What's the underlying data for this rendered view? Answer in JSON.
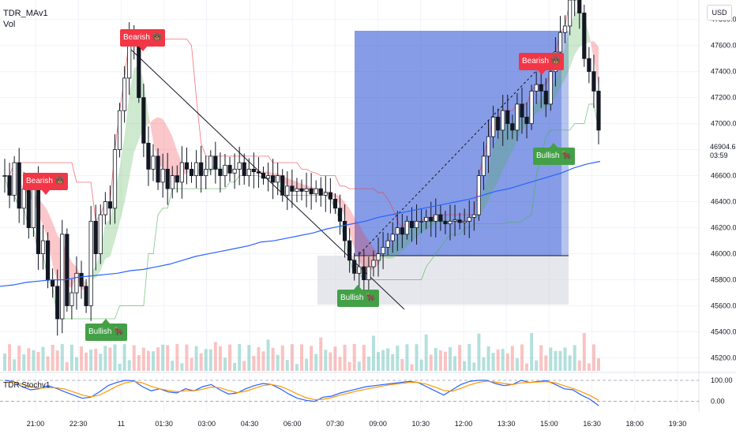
{
  "header": {
    "title": "TDR_MAv1",
    "subtitle": "Vol",
    "currency": "USD",
    "oscillator_label": "TDR Stochv1"
  },
  "price_tag": {
    "price": "46904.62",
    "countdown": "03:59"
  },
  "signals": [
    {
      "label": "Bearish",
      "type": "bear",
      "icon": "bear-icon"
    },
    {
      "label": "Bearish",
      "type": "bear",
      "icon": "bear-icon"
    },
    {
      "label": "Bullish",
      "type": "bull",
      "icon": "bull-icon"
    },
    {
      "label": "Bullish",
      "type": "bull",
      "icon": "bull-icon"
    },
    {
      "label": "Bearish",
      "type": "bear",
      "icon": "bear-icon"
    },
    {
      "label": "Bullish",
      "type": "bull",
      "icon": "bull-icon"
    }
  ],
  "colors": {
    "up": "#26a69a",
    "down": "#ef5350",
    "candle": "#131722",
    "bull_band": "#4caf50",
    "bear_band": "#f23645",
    "ma_long": "#2962ff",
    "stoch_k": "#2962ff",
    "stoch_d": "#ff9800",
    "box": "#2f55d4"
  },
  "chart_data": {
    "type": "candlestick",
    "x_ticks": [
      "21:00",
      "22:30",
      "11",
      "01:30",
      "03:00",
      "04:30",
      "06:00",
      "07:30",
      "09:00",
      "10:30",
      "12:00",
      "13:30",
      "15:00",
      "16:30",
      "18:00",
      "19:30"
    ],
    "y_ticks": [
      45200,
      45400,
      45600,
      45800,
      46000,
      46200,
      46400,
      46600,
      46800,
      47000,
      47200,
      47400,
      47600,
      47800
    ],
    "ylim": [
      45100,
      47950
    ],
    "closes": [
      46600,
      46450,
      46700,
      46350,
      46500,
      46200,
      46550,
      46000,
      46100,
      45800,
      45750,
      45500,
      46150,
      45600,
      45700,
      45850,
      45750,
      45600,
      46250,
      46000,
      46300,
      46400,
      46350,
      46800,
      47100,
      47350,
      47650,
      47600,
      47200,
      46850,
      46650,
      46750,
      46550,
      46650,
      46500,
      46600,
      46550,
      46700,
      46650,
      46600,
      46700,
      46600,
      46650,
      46750,
      46650,
      46600,
      46680,
      46620,
      46650,
      46700,
      46600,
      46650,
      46630,
      46620,
      46580,
      46600,
      46550,
      46600,
      46450,
      46520,
      46480,
      46500,
      46480,
      46500,
      46460,
      46500,
      46450,
      46470,
      46420,
      46350,
      46250,
      46100,
      45950,
      45850,
      45900,
      45800,
      45900,
      45950,
      46000,
      46050,
      46100,
      46150,
      46200,
      46150,
      46250,
      46200,
      46250,
      46250,
      46280,
      46250,
      46300,
      46250,
      46230,
      46250,
      46260,
      46240,
      46250,
      46280,
      46300,
      46600,
      46750,
      46900,
      47050,
      46950,
      47100,
      47000,
      46950,
      47150,
      47050,
      47000,
      47250,
      47300,
      47250,
      47150,
      47400,
      47550,
      47700,
      47750,
      47950,
      48000,
      47850,
      47500,
      47400,
      47250,
      46950
    ],
    "moving_average_long": [
      45750,
      45760,
      45780,
      45790,
      45800,
      45800,
      45820,
      45830,
      45840,
      45850,
      45870,
      45880,
      45900,
      45920,
      45950,
      45980,
      46000,
      46020,
      46040,
      46060,
      46090,
      46100,
      46120,
      46140,
      46160,
      46190,
      46210,
      46230,
      46250,
      46280,
      46300,
      46320,
      46340,
      46360,
      46380,
      46400,
      46420,
      46450,
      46480,
      46500,
      46530,
      46560,
      46590,
      46620,
      46660,
      46690,
      46710
    ],
    "oscillator": {
      "ylim": [
        -50,
        130
      ],
      "y_ticks": [
        100,
        0
      ],
      "k": [
        100,
        95,
        70,
        55,
        60,
        75,
        62,
        45,
        30,
        15,
        20,
        45,
        75,
        90,
        100,
        98,
        70,
        50,
        60,
        45,
        40,
        60,
        50,
        70,
        80,
        55,
        35,
        40,
        60,
        75,
        85,
        80,
        60,
        35,
        15,
        5,
        0,
        20,
        25,
        40,
        50,
        60,
        70,
        75,
        80,
        85,
        90,
        95,
        90,
        70,
        50,
        30,
        55,
        80,
        95,
        100,
        100,
        85,
        75,
        80,
        100,
        90,
        95,
        98,
        80,
        60,
        55,
        30,
        10,
        -20
      ],
      "d": [
        90,
        92,
        82,
        70,
        62,
        65,
        65,
        58,
        45,
        30,
        22,
        30,
        50,
        72,
        88,
        95,
        88,
        72,
        60,
        52,
        46,
        50,
        50,
        58,
        68,
        65,
        52,
        42,
        48,
        62,
        75,
        80,
        72,
        55,
        35,
        18,
        8,
        10,
        18,
        30,
        40,
        50,
        58,
        66,
        74,
        80,
        85,
        90,
        90,
        82,
        68,
        52,
        48,
        62,
        78,
        90,
        96,
        92,
        85,
        80,
        88,
        90,
        92,
        94,
        88,
        74,
        62,
        46,
        28,
        5
      ]
    }
  }
}
